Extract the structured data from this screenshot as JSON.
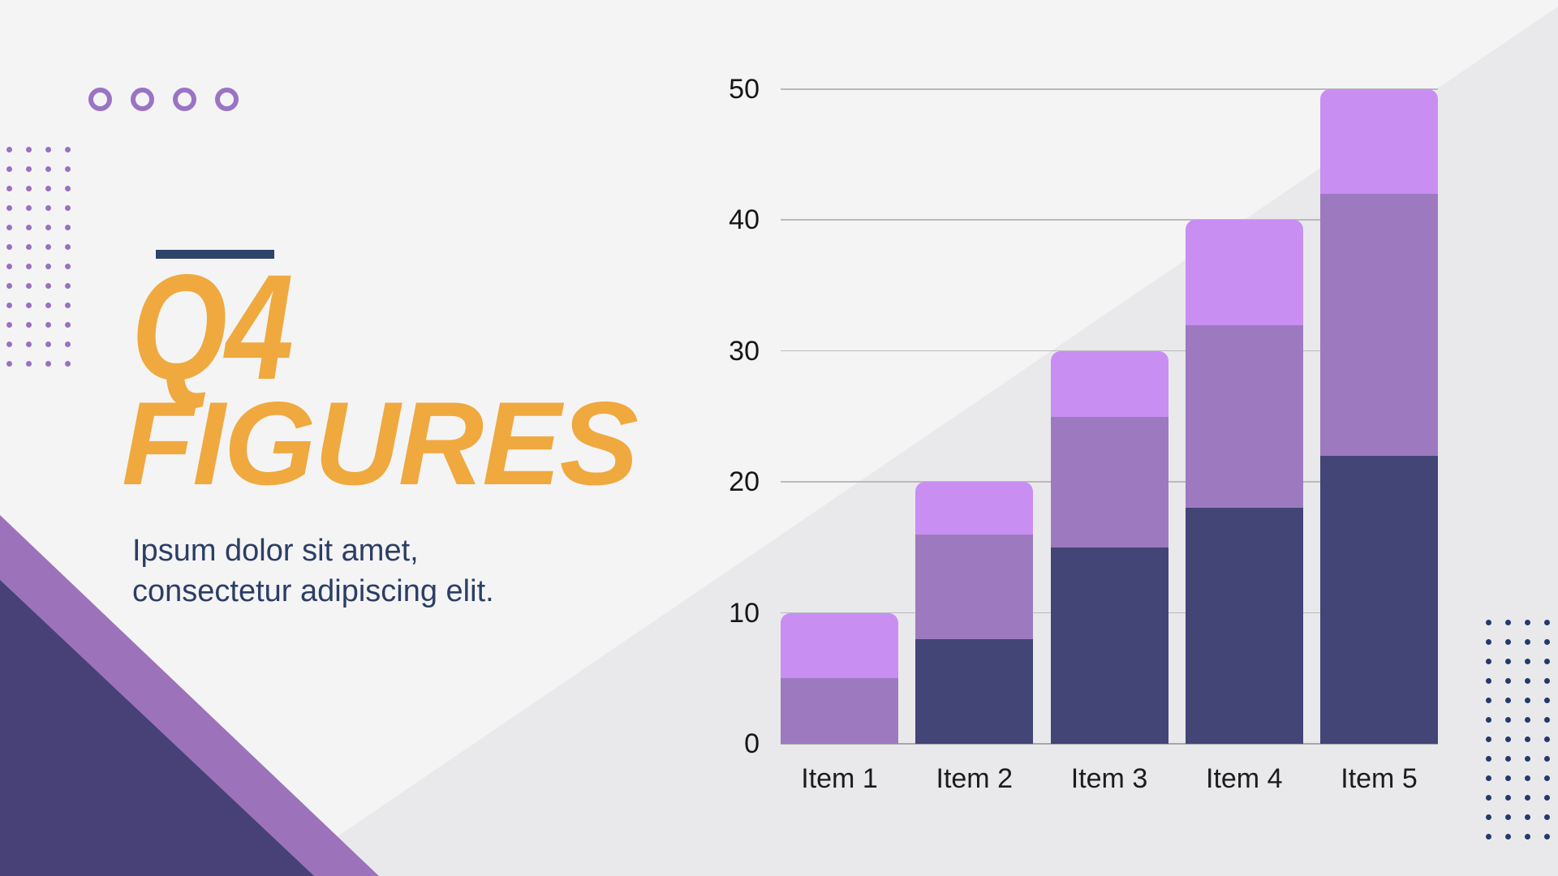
{
  "slide": {
    "title_line1": "Q4",
    "title_line2": "FIGURES",
    "subtitle_line1": "Ipsum dolor sit amet,",
    "subtitle_line2": "consectetur adipiscing elit.",
    "title_color": "#efa93e",
    "subtitle_color": "#2c3e64",
    "accent_bar_color": "#2e4369",
    "background_light": "#f4f4f5",
    "background_dark_diagonal": "#e9e9ec",
    "corner_triangle_purple": "#9c73ba",
    "corner_triangle_navy": "#474178"
  },
  "decorations": {
    "rings": {
      "count": 4,
      "color": "#9a74c4"
    },
    "dot_grid_left": {
      "rows": 12,
      "cols": 4,
      "color": "#9a70c2"
    },
    "dot_grid_right": {
      "rows": 12,
      "cols": 4,
      "color": "#233a6c"
    }
  },
  "chart_data": {
    "type": "bar",
    "stacked": true,
    "title": "",
    "xlabel": "",
    "ylabel": "",
    "categories": [
      "Item 1",
      "Item 2",
      "Item 3",
      "Item 4",
      "Item 5"
    ],
    "series": [
      {
        "name": "bottom-navy-segment",
        "color": "#434577",
        "values": [
          0,
          8,
          15,
          18,
          22
        ]
      },
      {
        "name": "middle-purple-segment",
        "color": "#9d7ac0",
        "values": [
          5,
          8,
          10,
          14,
          20
        ]
      },
      {
        "name": "top-lavender-segment",
        "color": "#c98ef2",
        "values": [
          5,
          4,
          5,
          8,
          8
        ]
      }
    ],
    "totals": [
      10,
      20,
      30,
      40,
      50
    ],
    "ylim": [
      0,
      50
    ],
    "yticks": [
      0,
      10,
      20,
      30,
      40,
      50
    ],
    "grid": true,
    "legend": "none"
  }
}
